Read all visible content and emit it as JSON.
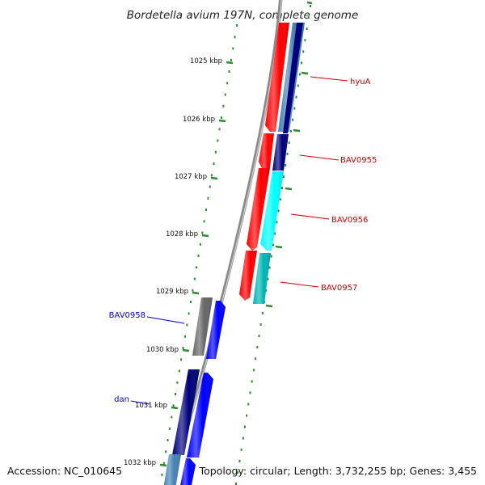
{
  "title": "Bordetella avium 197N, complete genome",
  "footer": {
    "accession": "Accession: NC_010645",
    "summary": "Topology: circular; Length: 3,732,255 bp; Genes: 3,455"
  },
  "scale": [
    {
      "label": "1025 kbp"
    },
    {
      "label": "1026 kbp"
    },
    {
      "label": "1027 kbp"
    },
    {
      "label": "1028 kbp"
    },
    {
      "label": "1029 kbp"
    },
    {
      "label": "1030 kbp"
    },
    {
      "label": "1031 kbp"
    },
    {
      "label": "1032 kbp"
    }
  ],
  "gene_labels": [
    {
      "name": "hyuA",
      "color": "#cc0000"
    },
    {
      "name": "BAV0955",
      "color": "#cc0000"
    },
    {
      "name": "BAV0956",
      "color": "#cc0000"
    },
    {
      "name": "BAV0957",
      "color": "#cc0000"
    },
    {
      "name": "BAV0958",
      "color": "#0000cc"
    },
    {
      "name": "dan",
      "color": "#0000cc"
    }
  ],
  "colors": {
    "backbone": "#8a8a8a",
    "tick": "#2e8b2e",
    "red": "#ff0000",
    "navy": "#00007a",
    "steelblue": "#4682b4",
    "cyan": "#00ffff",
    "darkcyan": "#00b5b5",
    "gray": "#666666",
    "blue": "#0000ff"
  }
}
